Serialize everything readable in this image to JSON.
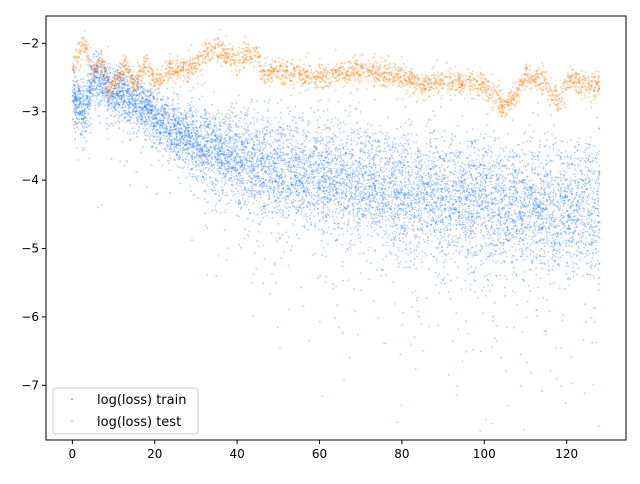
{
  "chart_data": {
    "type": "scatter",
    "title": "",
    "xlabel": "",
    "ylabel": "",
    "xlim": [
      -6.4,
      134.4
    ],
    "ylim": [
      -7.8,
      -1.6
    ],
    "xticks": [
      0,
      20,
      40,
      60,
      80,
      100,
      120
    ],
    "yticks": [
      -7,
      -6,
      -5,
      -4,
      -3,
      -2
    ],
    "xtick_labels": [
      "0",
      "20",
      "40",
      "60",
      "80",
      "100",
      "120"
    ],
    "ytick_labels": [
      "−7",
      "−6",
      "−5",
      "−4",
      "−3",
      "−2"
    ],
    "grid": false,
    "legend": {
      "position": "lower-left"
    },
    "series": [
      {
        "name": "log(loss) train",
        "color": "#1f77ff",
        "marker": "dot",
        "x_range": [
          0,
          128
        ],
        "trend": {
          "x": [
            0,
            2,
            3,
            5,
            8,
            10,
            12,
            14,
            16,
            18,
            20,
            25,
            30,
            40,
            50,
            60,
            70,
            80,
            90,
            100,
            110,
            120,
            128
          ],
          "y": [
            -2.8,
            -2.9,
            -3.0,
            -2.5,
            -2.6,
            -2.75,
            -2.7,
            -2.8,
            -2.85,
            -2.95,
            -3.05,
            -3.25,
            -3.45,
            -3.7,
            -3.85,
            -3.95,
            -4.05,
            -4.15,
            -4.25,
            -4.3,
            -4.35,
            -4.4,
            -4.4
          ]
        },
        "spread_lower": {
          "x": [
            0,
            20,
            40,
            60,
            80,
            100,
            128
          ],
          "y": [
            -3.3,
            -3.5,
            -4.7,
            -5.2,
            -5.6,
            -5.8,
            -6.1
          ]
        },
        "spread_upper": {
          "x": [
            0,
            20,
            40,
            60,
            80,
            100,
            128
          ],
          "y": [
            -2.4,
            -2.7,
            -3.1,
            -3.4,
            -3.6,
            -3.7,
            -3.8
          ]
        }
      },
      {
        "name": "log(loss) test",
        "color": "#ff7f0e",
        "marker": "dot",
        "x_range": [
          0,
          128
        ],
        "trend": {
          "x": [
            0,
            2,
            3,
            5,
            7,
            9,
            11,
            13,
            15,
            18,
            20,
            25,
            30,
            35,
            40,
            45,
            46,
            50,
            60,
            70,
            80,
            85,
            90,
            100,
            105,
            110,
            115,
            118,
            120,
            128
          ],
          "y": [
            -2.4,
            -2.1,
            -2.0,
            -2.45,
            -2.2,
            -2.7,
            -2.5,
            -2.35,
            -2.6,
            -2.3,
            -2.55,
            -2.4,
            -2.3,
            -2.05,
            -2.25,
            -2.1,
            -2.5,
            -2.4,
            -2.5,
            -2.4,
            -2.5,
            -2.6,
            -2.55,
            -2.6,
            -2.95,
            -2.5,
            -2.6,
            -2.9,
            -2.55,
            -2.65
          ]
        }
      }
    ]
  }
}
